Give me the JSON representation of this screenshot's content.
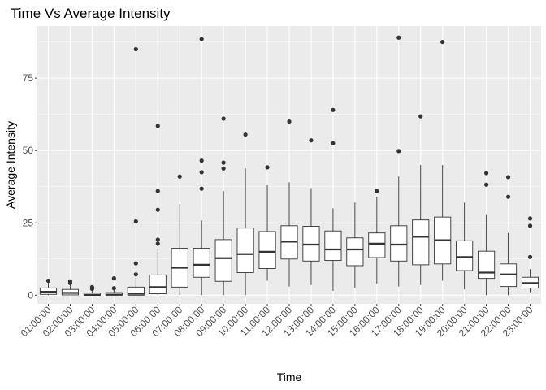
{
  "chart_data": {
    "type": "box",
    "title": "Time Vs Average Intensity",
    "xlabel": "Time",
    "ylabel": "Average Intensity",
    "ylim": [
      -3,
      93
    ],
    "yticks": [
      0,
      25,
      50,
      75
    ],
    "grid": true,
    "categories": [
      "01:00:00",
      "02:00:00",
      "03:00:00",
      "04:00:00",
      "05:00:00",
      "06:00:00",
      "07:00:00",
      "08:00:00",
      "09:00:00",
      "10:00:00",
      "11:00:00",
      "12:00:00",
      "13:00:00",
      "14:00:00",
      "15:00:00",
      "16:00:00",
      "17:00:00",
      "18:00:00",
      "19:00:00",
      "20:00:00",
      "21:00:00",
      "22:00:00",
      "23:00:00"
    ],
    "boxes": [
      {
        "q1": 0.3,
        "median": 1.2,
        "q3": 2.5,
        "whisker_low": 0,
        "whisker_high": 4.5,
        "outliers": [
          5
        ]
      },
      {
        "q1": 0.1,
        "median": 0.8,
        "q3": 2.0,
        "whisker_low": 0,
        "whisker_high": 3.5,
        "outliers": [
          4.2,
          4.8
        ]
      },
      {
        "q1": 0,
        "median": 0.1,
        "q3": 0.7,
        "whisker_low": 0,
        "whisker_high": 1.5,
        "outliers": [
          2.2,
          2.8
        ]
      },
      {
        "q1": 0,
        "median": 0.2,
        "q3": 0.9,
        "whisker_low": 0,
        "whisker_high": 2.0,
        "outliers": [
          2.4,
          5.8
        ]
      },
      {
        "q1": 0,
        "median": 0.5,
        "q3": 2.8,
        "whisker_low": 0,
        "whisker_high": 6.0,
        "outliers": [
          7.2,
          11,
          25.5,
          85
        ]
      },
      {
        "q1": 0.5,
        "median": 2.8,
        "q3": 7.0,
        "whisker_low": 0,
        "whisker_high": 16,
        "outliers": [
          17.8,
          19.2,
          29.5,
          36,
          58.5
        ]
      },
      {
        "q1": 2.8,
        "median": 9.5,
        "q3": 16.2,
        "whisker_low": 0,
        "whisker_high": 31.5,
        "outliers": [
          41
        ]
      },
      {
        "q1": 6.2,
        "median": 10.5,
        "q3": 16.2,
        "whisker_low": 0,
        "whisker_high": 25.8,
        "outliers": [
          36.8,
          42.5,
          46.5,
          88.5
        ]
      },
      {
        "q1": 4.8,
        "median": 12.8,
        "q3": 19.2,
        "whisker_low": 0,
        "whisker_high": 36,
        "outliers": [
          43.8,
          45.8,
          61
        ]
      },
      {
        "q1": 7.8,
        "median": 14.2,
        "q3": 23.2,
        "whisker_low": 0,
        "whisker_high": 43.8,
        "outliers": [
          55.5
        ]
      },
      {
        "q1": 9.2,
        "median": 15.0,
        "q3": 22.0,
        "whisker_low": 5,
        "whisker_high": 38,
        "outliers": [
          44.2
        ]
      },
      {
        "q1": 12.5,
        "median": 18.5,
        "q3": 24.0,
        "whisker_low": 3,
        "whisker_high": 39,
        "outliers": [
          60
        ]
      },
      {
        "q1": 11.8,
        "median": 17.5,
        "q3": 23.8,
        "whisker_low": 3.5,
        "whisker_high": 37,
        "outliers": [
          53.5
        ]
      },
      {
        "q1": 12.0,
        "median": 15.8,
        "q3": 22.2,
        "whisker_low": 1.5,
        "whisker_high": 30,
        "outliers": [
          52.5,
          64
        ]
      },
      {
        "q1": 10.2,
        "median": 15.8,
        "q3": 19.8,
        "whisker_low": 2.5,
        "whisker_high": 32,
        "outliers": []
      },
      {
        "q1": 13.0,
        "median": 17.8,
        "q3": 21.5,
        "whisker_low": 4,
        "whisker_high": 34,
        "outliers": [
          36
        ]
      },
      {
        "q1": 11.8,
        "median": 17.5,
        "q3": 24.0,
        "whisker_low": 3,
        "whisker_high": 41,
        "outliers": [
          49.8,
          89
        ]
      },
      {
        "q1": 10.5,
        "median": 20.2,
        "q3": 26.0,
        "whisker_low": 3.5,
        "whisker_high": 45,
        "outliers": [
          61.8
        ]
      },
      {
        "q1": 10.8,
        "median": 19.0,
        "q3": 27.0,
        "whisker_low": 5,
        "whisker_high": 45,
        "outliers": [
          87.5
        ]
      },
      {
        "q1": 8.5,
        "median": 13.2,
        "q3": 18.8,
        "whisker_low": 2,
        "whisker_high": 32,
        "outliers": []
      },
      {
        "q1": 5.8,
        "median": 7.8,
        "q3": 15.2,
        "whisker_low": 0,
        "whisker_high": 28,
        "outliers": [
          38.2,
          42.2
        ]
      },
      {
        "q1": 3.0,
        "median": 7.2,
        "q3": 10.8,
        "whisker_low": 0,
        "whisker_high": 21.5,
        "outliers": [
          34,
          40.8
        ]
      },
      {
        "q1": 2.5,
        "median": 4.2,
        "q3": 6.2,
        "whisker_low": 1,
        "whisker_high": 9,
        "outliers": [
          13.2,
          24,
          26.5
        ]
      }
    ],
    "colors": {
      "panel_bg": "#ebebeb",
      "grid_major": "#ffffff",
      "box_fill": "#ffffff",
      "box_stroke": "#333333",
      "outlier": "#333333",
      "tick_text": "#4d4d4d",
      "text": "#000000"
    }
  }
}
